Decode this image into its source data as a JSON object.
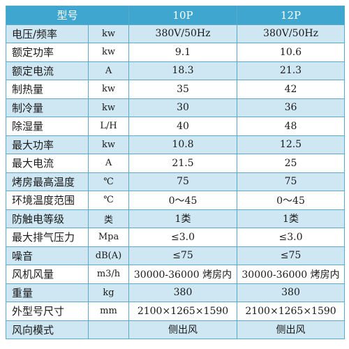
{
  "header": {
    "model": "型号",
    "col_10p": "10P",
    "col_12p": "12P"
  },
  "rows": [
    {
      "name": "电压/频率",
      "unit": "kw",
      "v10": "380V/50Hz",
      "v12": "380V/50Hz"
    },
    {
      "name": "额定功率",
      "unit": "kw",
      "v10": "9.1",
      "v12": "10.6"
    },
    {
      "name": "额定电流",
      "unit": "A",
      "v10": "18.3",
      "v12": "21.3"
    },
    {
      "name": "制热量",
      "unit": "kw",
      "v10": "35",
      "v12": "42"
    },
    {
      "name": "制冷量",
      "unit": "kw",
      "v10": "30",
      "v12": "36"
    },
    {
      "name": "除湿量",
      "unit": "L/H",
      "v10": "40",
      "v12": "48"
    },
    {
      "name": "最大功率",
      "unit": "kw",
      "v10": "10.8",
      "v12": "12.5"
    },
    {
      "name": "最大电流",
      "unit": "A",
      "v10": "21.5",
      "v12": "25"
    },
    {
      "name": "烤房最高温度",
      "unit": "℃",
      "v10": "75",
      "v12": "75"
    },
    {
      "name": "环境温度范围",
      "unit": "℃",
      "v10": "0～45",
      "v12": "0～45"
    },
    {
      "name": "防触电等级",
      "unit": "类",
      "v10": "1类",
      "v12": "1类"
    },
    {
      "name": "最大排气压力",
      "unit": "Mpa",
      "v10": "≤3.0",
      "v12": "≤3.0"
    },
    {
      "name": "噪音",
      "unit": "dB(A)",
      "v10": "≤75",
      "v12": "≤75"
    },
    {
      "name": "风机风量",
      "unit": "m3/h",
      "v10": "30000-36000 烤房内",
      "v12": "30000-36000 烤房内"
    },
    {
      "name": "重量",
      "unit": "kg",
      "v10": "380",
      "v12": "380"
    },
    {
      "name": "外型号尺寸",
      "unit": "mm",
      "v10": "2100×1265×1590",
      "v12": "2100×1265×1590"
    },
    {
      "name": "风向模式",
      "unit": "",
      "v10": "侧出风",
      "v12": "侧出风"
    }
  ],
  "colors": {
    "header_bg": "#3fa7cf",
    "stripe_bg": "#cfe7f3",
    "border": "#5aa9c9"
  }
}
